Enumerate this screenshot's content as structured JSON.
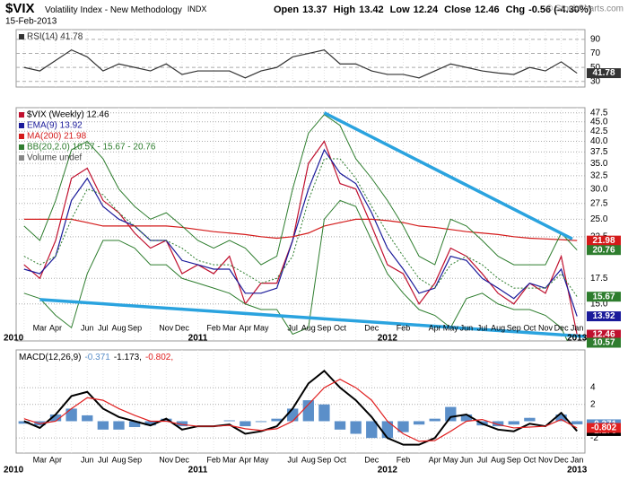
{
  "header": {
    "symbol": "$VIX",
    "name": "Volatility Index - New Methodology",
    "exchange": "INDX",
    "date": "15-Feb-2013",
    "quote": [
      {
        "label": "Open",
        "value": 13.37
      },
      {
        "label": "High",
        "value": 13.42
      },
      {
        "label": "Low",
        "value": 12.24
      },
      {
        "label": "Close",
        "value": 12.46
      },
      {
        "label": "Chg",
        "value": -0.56,
        "value_label": "-0.56 (-4.30%)"
      }
    ],
    "credit": "© StockCharts.com"
  },
  "chart_data": [
    {
      "type": "line",
      "ylim": [
        22,
        104
      ],
      "yticks": [
        90,
        70,
        50,
        30
      ],
      "grid": true,
      "series": [
        {
          "name": "RSI(14) 41.78",
          "color": "#333333",
          "last": 41.78,
          "values": [
            50,
            45,
            60,
            75,
            65,
            45,
            55,
            50,
            45,
            55,
            40,
            45,
            45,
            45,
            35,
            45,
            50,
            65,
            70,
            75,
            55,
            55,
            45,
            40,
            40,
            35,
            45,
            55,
            50,
            45,
            42,
            40,
            50,
            45,
            58,
            41.78
          ]
        }
      ]
    },
    {
      "type": "line",
      "log": true,
      "ylim": [
        12,
        49
      ],
      "grid": true,
      "yticks": [
        {
          "value": 15,
          "label": "15.0"
        },
        17.5,
        22.5,
        {
          "value": 25,
          "label": "25.0"
        },
        27.5,
        {
          "value": 30,
          "label": "30.0"
        },
        32.5,
        {
          "value": 35,
          "label": "35.0"
        },
        37.5,
        {
          "value": 40,
          "label": "40.0"
        },
        42.5,
        {
          "value": 45,
          "label": "45.0"
        },
        47.5
      ],
      "categories": [
        null,
        "Mar",
        "Apr",
        null,
        "Jun",
        "Jul",
        "Aug",
        "Sep",
        null,
        "Nov",
        "Dec",
        null,
        "Feb",
        "Mar",
        "Apr",
        "May",
        null,
        "Jul",
        "Aug",
        "Sep",
        "Oct",
        null,
        "Dec",
        null,
        "Feb",
        null,
        "Apr",
        "May",
        "Jun",
        "Jul",
        "Aug",
        "Sep",
        "Oct",
        "Nov",
        "Dec",
        "Jan"
      ],
      "years": [
        "2010",
        "2011",
        "2012",
        "2013"
      ],
      "series": [
        {
          "name": "$VIX (Weekly) 12.46",
          "color": "#c0102e",
          "last": 12.46,
          "values": [
            19,
            17.5,
            22,
            32,
            34,
            28,
            26,
            23,
            21,
            22,
            18,
            19,
            18,
            20,
            15,
            17,
            17,
            22,
            35,
            40,
            31,
            30,
            24,
            19,
            18,
            15,
            17,
            21,
            20,
            18,
            16,
            15,
            17,
            16,
            20,
            12.46
          ]
        },
        {
          "name": "EMA(9) 13.92",
          "color": "#1a1a9a",
          "last": 13.92,
          "values": [
            18.5,
            18,
            20,
            28,
            32,
            27,
            25,
            24,
            22,
            22,
            19.5,
            19,
            18.5,
            18.5,
            16,
            16,
            16.5,
            22,
            30,
            38,
            33,
            31,
            26,
            21,
            18.5,
            16,
            16.5,
            20,
            19.5,
            17.5,
            16.5,
            15.5,
            17,
            16.5,
            18.5,
            13.92
          ]
        },
        {
          "name": "MA(200) 21.98",
          "color": "#d41a1a",
          "last": 21.98,
          "values": [
            25,
            25,
            25,
            25,
            24.5,
            24,
            24,
            24,
            24,
            24,
            23.8,
            23.5,
            23.2,
            23,
            22.8,
            22.5,
            22.3,
            22.5,
            23,
            24,
            24.5,
            25,
            25,
            24.8,
            24.5,
            24,
            23.8,
            23.5,
            23.2,
            23,
            22.8,
            22.5,
            22.3,
            22.2,
            22.1,
            21.98
          ]
        },
        {
          "name": "BB(20,2.0) 10.57 - 15.67 - 20.76",
          "color": "#2e7d2e",
          "last": [
            10.57,
            15.67,
            20.76
          ],
          "bands": {
            "lower": [
              16,
              15.5,
              14,
              13,
              18,
              22,
              22,
              21,
              19,
              19,
              17.5,
              17,
              16.5,
              16,
              15,
              14.5,
              14.5,
              12.5,
              13,
              25,
              28,
              27,
              22,
              18,
              16,
              14.5,
              14,
              13,
              15.5,
              16,
              15,
              14.5,
              14.5,
              14,
              13,
              10.57
            ],
            "middle": [
              20,
              19,
              20,
              25,
              30,
              29,
              26,
              24,
              22,
              22,
              21,
              19.5,
              19,
              19,
              18,
              17,
              17.5,
              20,
              28,
              36,
              36,
              32,
              27,
              23,
              20,
              17.5,
              16.5,
              19,
              20,
              19,
              17.5,
              16.5,
              16.5,
              16.5,
              18,
              15.67
            ],
            "upper": [
              24,
              22,
              28,
              38,
              40,
              36,
              30,
              27,
              25,
              26,
              24,
              22,
              21,
              22,
              21,
              19,
              20,
              30,
              42,
              47,
              44,
              36,
              32,
              28,
              24,
              20,
              19,
              25,
              24,
              22,
              20,
              19,
              19,
              19,
              23,
              20.76
            ]
          }
        }
      ],
      "extra_legend": "Volume undef",
      "trendlines": [
        {
          "color": "#2aa3df",
          "points": [
            [
              19,
              47.5
            ],
            [
              34.7,
              22.2
            ]
          ]
        },
        {
          "color": "#2aa3df",
          "points": [
            [
              1,
              15.4
            ],
            [
              35.9,
              12.3
            ]
          ]
        }
      ]
    },
    {
      "type": "line",
      "ylim": [
        -3.8,
        8.5
      ],
      "yticks": [
        4,
        2,
        -2
      ],
      "grid": true,
      "title": "MACD(12,26,9)",
      "categories": [
        null,
        "Mar",
        "Apr",
        null,
        "Jun",
        "Jul",
        "Aug",
        "Sep",
        null,
        "Nov",
        "Dec",
        null,
        "Feb",
        "Mar",
        "Apr",
        "May",
        null,
        "Jul",
        "Aug",
        "Sep",
        "Oct",
        null,
        "Dec",
        null,
        "Feb",
        null,
        "Apr",
        "May",
        "Jun",
        "Jul",
        "Aug",
        "Sep",
        "Oct",
        "Nov",
        "Dec",
        "Jan"
      ],
      "years": [
        "2010",
        "2011",
        "2012",
        "2013"
      ],
      "series": [
        {
          "type": "bar",
          "color": "#5b8fc9",
          "last": -0.371,
          "last_label": "-0.371",
          "values": [
            -0.3,
            -0.5,
            0.8,
            1.5,
            0.7,
            -1,
            -1,
            -0.7,
            -0.5,
            0.3,
            -0.6,
            0,
            0,
            0.1,
            -0.6,
            -0.1,
            0.3,
            1.5,
            2.5,
            2,
            -1,
            -1.5,
            -2,
            -2,
            -1.3,
            -0.4,
            0.3,
            1.7,
            0.8,
            -0.5,
            -0.6,
            -0.4,
            0.4,
            0,
            0.8,
            -0.371
          ]
        },
        {
          "color": "#000000",
          "width": 2,
          "last": -1.173,
          "last_label": "-1.173,",
          "values": [
            0,
            -0.8,
            0.8,
            3,
            3.5,
            1.5,
            0.5,
            0,
            -0.5,
            0.3,
            -1,
            -0.6,
            -0.6,
            -0.4,
            -1.5,
            -1.2,
            -0.6,
            1.5,
            4.5,
            6,
            4,
            2.5,
            0.5,
            -2,
            -2.8,
            -2.8,
            -2,
            0.5,
            0.8,
            -0.3,
            -1,
            -1.2,
            -0.3,
            -0.6,
            1,
            -1.173
          ]
        },
        {
          "color": "#e02020",
          "last": -0.802,
          "last_label": "-0.802,",
          "values": [
            0.3,
            -0.3,
            0,
            1.5,
            2.8,
            2.5,
            1.5,
            0.7,
            0,
            0,
            -0.4,
            -0.6,
            -0.6,
            -0.5,
            -0.9,
            -1.1,
            -0.9,
            0,
            2,
            4,
            5,
            4,
            2.5,
            0,
            -1.5,
            -2.4,
            -2.3,
            -1.2,
            0,
            0.2,
            -0.4,
            -0.8,
            -0.7,
            -0.6,
            0.2,
            -0.802
          ]
        }
      ]
    }
  ]
}
